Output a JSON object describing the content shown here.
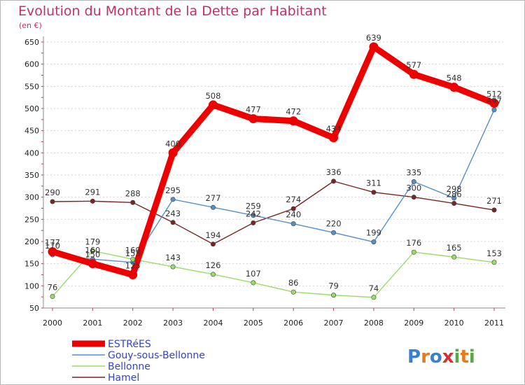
{
  "chart_data": {
    "type": "line",
    "title": "Evolution du Montant de la Dette par Habitant",
    "subtitle": "(en €)",
    "categories": [
      "2000",
      "2001",
      "2002",
      "2003",
      "2004",
      "2005",
      "2006",
      "2007",
      "2008",
      "2009",
      "2010",
      "2011"
    ],
    "yticks": [
      50,
      100,
      150,
      200,
      250,
      300,
      350,
      400,
      450,
      500,
      550,
      600,
      650
    ],
    "ylim": [
      50,
      650
    ],
    "grid": "horizontal-dashed",
    "legend_position": "bottom-left",
    "series": [
      {
        "name": "ESTRéES",
        "color": "#ee0000",
        "values": [
          177,
          150,
          125,
          400,
          508,
          477,
          472,
          434,
          639,
          577,
          548,
          512
        ]
      },
      {
        "name": "Gouy-sous-Bellonne",
        "color": "#5590c8",
        "values": [
          170,
          160,
          153,
          295,
          277,
          259,
          240,
          220,
          199,
          335,
          298,
          497
        ]
      },
      {
        "name": "Bellonne",
        "color": "#99dd66",
        "values": [
          76,
          179,
          160,
          143,
          126,
          107,
          86,
          79,
          74,
          176,
          165,
          153
        ]
      },
      {
        "name": "Hamel",
        "color": "#7a2424",
        "values": [
          290,
          291,
          288,
          243,
          194,
          242,
          274,
          336,
          311,
          300,
          286,
          271
        ]
      }
    ]
  },
  "logo": {
    "text": "Proxiti",
    "letters": [
      "P",
      "r",
      "o",
      "x",
      "i",
      "t",
      "i"
    ],
    "colors": [
      "#3a7fd0",
      "#e87a1e",
      "#3a7fd0",
      "#d83030",
      "#5aa845",
      "#e87a1e",
      "#5aa845"
    ]
  }
}
